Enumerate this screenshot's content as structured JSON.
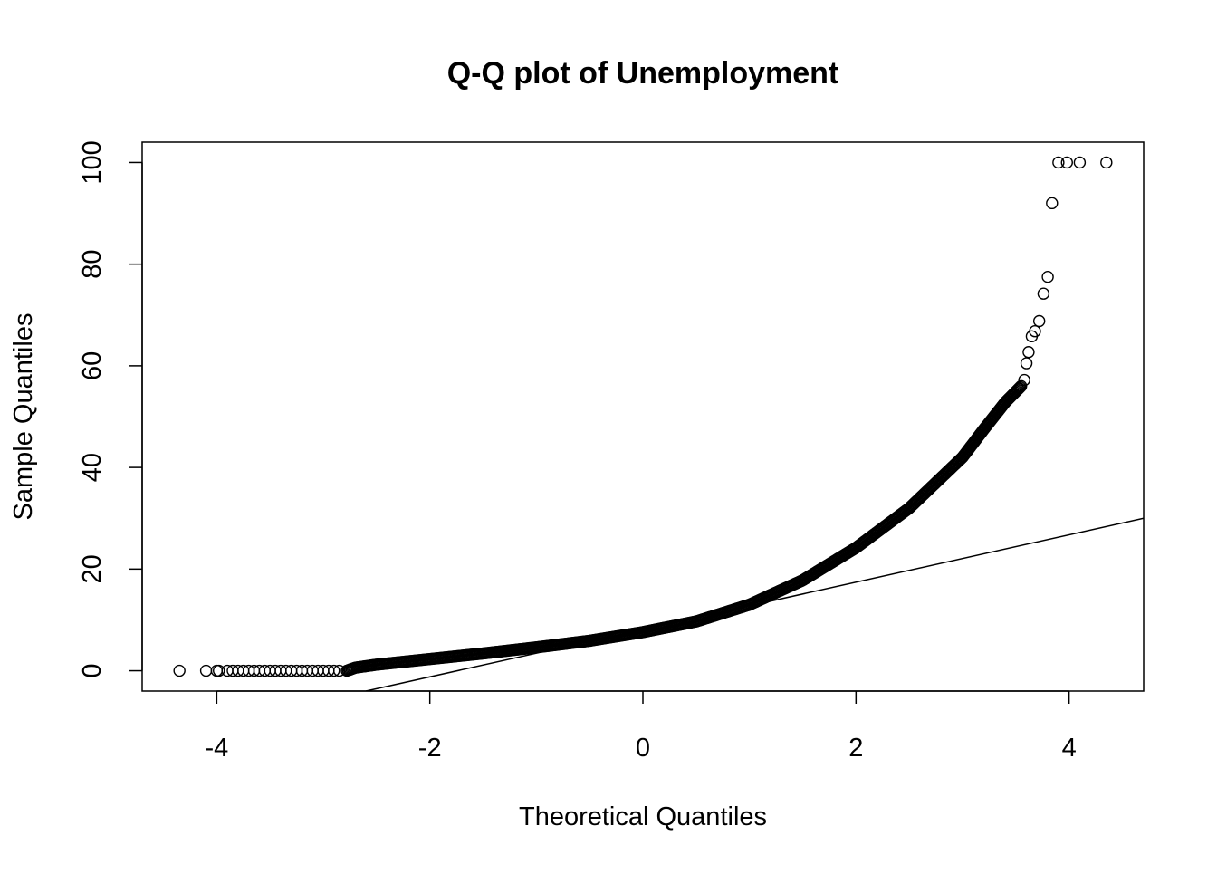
{
  "chart_data": {
    "type": "scatter",
    "title": "Q-Q plot of Unemployment",
    "xlabel": "Theoretical Quantiles",
    "ylabel": "Sample Quantiles",
    "xlim": [
      -4.7,
      4.7
    ],
    "ylim": [
      -4,
      104
    ],
    "x_ticks": [
      -4,
      -2,
      0,
      2,
      4
    ],
    "x_tick_labels": [
      "-4",
      "-2",
      "0",
      "2",
      "4"
    ],
    "y_ticks": [
      0,
      20,
      40,
      60,
      80,
      100
    ],
    "y_tick_labels": [
      "0",
      "20",
      "40",
      "60",
      "80",
      "100"
    ],
    "grid": false,
    "legend": "none",
    "marker": "open-circle",
    "colors": {
      "points": "#000000",
      "line": "#000000",
      "background": "#ffffff"
    },
    "reference_line": {
      "type": "qqline",
      "points": [
        [
          -2.6,
          -4
        ],
        [
          4.7,
          30
        ]
      ]
    },
    "curve": [
      [
        -2.78,
        0.0
      ],
      [
        -2.7,
        0.6
      ],
      [
        -2.5,
        1.2
      ],
      [
        -2.0,
        2.3
      ],
      [
        -1.5,
        3.4
      ],
      [
        -1.0,
        4.6
      ],
      [
        -0.5,
        5.9
      ],
      [
        0.0,
        7.6
      ],
      [
        0.5,
        9.7
      ],
      [
        1.0,
        13.0
      ],
      [
        1.5,
        17.8
      ],
      [
        2.0,
        24.2
      ],
      [
        2.5,
        32.0
      ],
      [
        3.0,
        42.0
      ],
      [
        3.2,
        47.5
      ],
      [
        3.4,
        52.8
      ],
      [
        3.55,
        56.0
      ]
    ],
    "low_tail": {
      "x": [
        -4.35,
        -4.1,
        -4.0,
        -3.98,
        -3.9,
        -3.85,
        -3.8,
        -3.75,
        -3.7,
        -3.65,
        -3.6,
        -3.55,
        -3.5,
        -3.45,
        -3.4,
        -3.35,
        -3.3,
        -3.25,
        -3.2,
        -3.15,
        -3.1,
        -3.05,
        -3.0,
        -2.95,
        -2.9,
        -2.85
      ],
      "y": 0
    },
    "outliers": [
      [
        3.58,
        57.2
      ],
      [
        3.6,
        60.5
      ],
      [
        3.62,
        62.7
      ],
      [
        3.65,
        65.8
      ],
      [
        3.68,
        66.8
      ],
      [
        3.72,
        68.8
      ],
      [
        3.76,
        74.2
      ],
      [
        3.8,
        77.5
      ],
      [
        3.84,
        92.0
      ],
      [
        3.9,
        100.0
      ],
      [
        3.98,
        100.0
      ],
      [
        4.1,
        100.0
      ],
      [
        4.35,
        100.0
      ]
    ]
  }
}
